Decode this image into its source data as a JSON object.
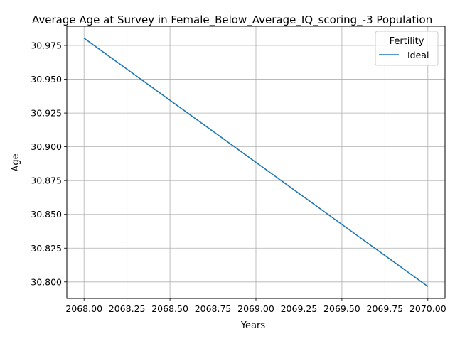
{
  "chart_data": {
    "type": "line",
    "title": "Average Age at Survey in Female_Below_Average_IQ_scoring_-3 Population",
    "xlabel": "Years",
    "ylabel": "Age",
    "xlim": [
      2067.9,
      2070.1
    ],
    "ylim": [
      30.7878,
      30.9892
    ],
    "xticks": [
      2068.0,
      2068.25,
      2068.5,
      2068.75,
      2069.0,
      2069.25,
      2069.5,
      2069.75,
      2070.0
    ],
    "xtick_labels": [
      "2068.00",
      "2068.25",
      "2068.50",
      "2068.75",
      "2069.00",
      "2069.25",
      "2069.50",
      "2069.75",
      "2070.00"
    ],
    "yticks": [
      30.8,
      30.825,
      30.85,
      30.875,
      30.9,
      30.925,
      30.95,
      30.975
    ],
    "ytick_labels": [
      "30.800",
      "30.825",
      "30.850",
      "30.875",
      "30.900",
      "30.925",
      "30.950",
      "30.975"
    ],
    "grid": true,
    "legend": {
      "title": "Fertility",
      "placement": "top-right"
    },
    "series": [
      {
        "name": "Ideal",
        "color": "#1f77b4",
        "x": [
          2068,
          2070
        ],
        "y": [
          30.9804,
          30.7966
        ]
      }
    ]
  }
}
